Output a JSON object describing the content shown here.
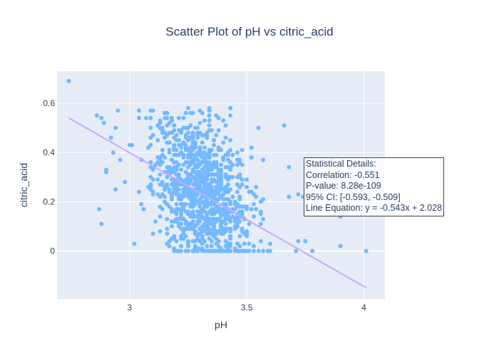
{
  "chart_data": {
    "type": "scatter",
    "title": "Scatter Plot of pH vs citric_acid",
    "xlabel": "pH",
    "ylabel": "citric_acid",
    "xlim": [
      2.69,
      4.09
    ],
    "ylim": [
      -0.195,
      0.73
    ],
    "x_ticks": [
      3,
      3.5,
      4
    ],
    "y_ticks": [
      0,
      0.2,
      0.4,
      0.6
    ],
    "x_tick_labels": [
      "3",
      "3.5",
      "4"
    ],
    "y_tick_labels": [
      "0",
      "0.2",
      "0.4",
      "0.6"
    ],
    "grid": true,
    "marker_color": "#74b9ff",
    "line_color": "#c8a8ff",
    "outliers": [
      {
        "x": 2.74,
        "y": 0.69
      },
      {
        "x": 2.86,
        "y": 0.55
      },
      {
        "x": 2.88,
        "y": 0.54
      },
      {
        "x": 2.89,
        "y": 0.52
      },
      {
        "x": 2.87,
        "y": 0.17
      },
      {
        "x": 2.88,
        "y": 0.11
      },
      {
        "x": 2.9,
        "y": 0.33
      },
      {
        "x": 2.9,
        "y": 0.32
      },
      {
        "x": 2.92,
        "y": 0.46
      },
      {
        "x": 2.93,
        "y": 0.4
      },
      {
        "x": 2.94,
        "y": 0.5
      },
      {
        "x": 2.95,
        "y": 0.57
      },
      {
        "x": 2.94,
        "y": 0.25
      },
      {
        "x": 2.96,
        "y": 0.37
      },
      {
        "x": 3.02,
        "y": 0.03
      },
      {
        "x": 3.43,
        "y": 0.58
      },
      {
        "x": 3.55,
        "y": 0.5
      },
      {
        "x": 3.66,
        "y": 0.51
      },
      {
        "x": 3.68,
        "y": 0.34
      },
      {
        "x": 3.72,
        "y": 0.23
      },
      {
        "x": 3.74,
        "y": 0.22
      },
      {
        "x": 3.78,
        "y": 0.24
      },
      {
        "x": 3.8,
        "y": 0.17
      },
      {
        "x": 3.85,
        "y": 0.21
      },
      {
        "x": 3.9,
        "y": 0.14
      },
      {
        "x": 3.9,
        "y": 0.02
      },
      {
        "x": 4.01,
        "y": 0.0
      },
      {
        "x": 3.71,
        "y": 0.0
      },
      {
        "x": 3.72,
        "y": 0.04
      },
      {
        "x": 3.75,
        "y": 0.04
      },
      {
        "x": 3.78,
        "y": 0.0
      }
    ],
    "cluster": {
      "count": 1100,
      "x_min": 2.98,
      "x_max": 3.72,
      "y_min": 0.0,
      "y_max": 0.58,
      "x_center": 3.31,
      "x_spread": 0.15,
      "slope": -0.543,
      "intercept": 2.028,
      "residual_spread": 0.15,
      "zero_cluster_x_range": [
        3.18,
        3.62
      ]
    },
    "regression": {
      "slope": -0.543,
      "intercept": 2.028,
      "x_start": 2.74,
      "x_end": 4.01
    },
    "annotation": {
      "lines": [
        "Statistical Details:",
        "Correlation: -0.551",
        "P-value: 8.28e-109",
        "95% CI: [-0.593, -0.509]",
        "Line Equation: y = -0.543x + 2.028"
      ]
    }
  }
}
